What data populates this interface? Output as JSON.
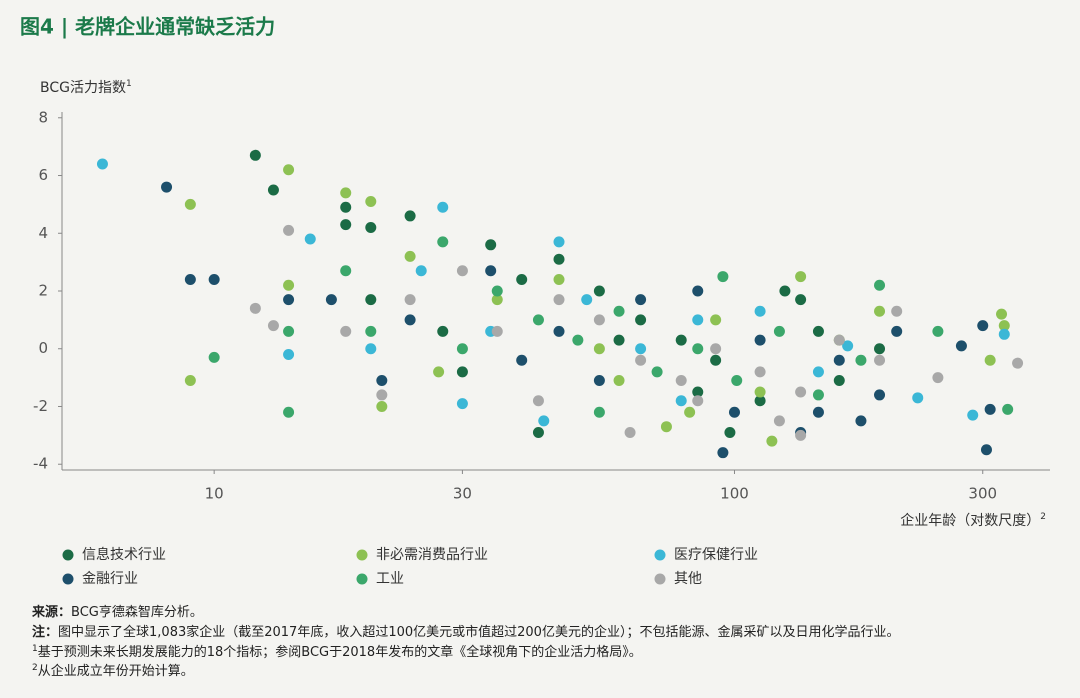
{
  "chart_data": {
    "type": "scatter",
    "title": "图4 | 老牌企业通常缺乏活力",
    "y_label": "BCG活力指数",
    "y_label_sup": "1",
    "x_label": "企业年龄（对数尺度）",
    "x_label_sup": "2",
    "xscale": "log",
    "xlim": [
      5.1,
      404
    ],
    "ylim": [
      -4.2,
      8.2
    ],
    "xticks": [
      10,
      30,
      100,
      300
    ],
    "yticks": [
      -4,
      -2,
      0,
      2,
      4,
      6,
      8
    ],
    "grid": false,
    "series": [
      {
        "name": "信息技术行业",
        "color": "#1b6b45",
        "x": [
          12,
          13,
          17.9,
          17.9,
          23.8,
          20,
          34,
          46,
          42,
          98,
          66,
          55,
          92,
          112,
          134,
          159,
          79,
          27.5,
          39,
          190,
          30,
          20,
          125,
          60,
          85,
          145
        ],
        "values": [
          6.7,
          5.5,
          4.9,
          4.3,
          4.6,
          4.2,
          3.6,
          3.1,
          -2.9,
          -2.9,
          1.0,
          2.0,
          -0.4,
          -1.8,
          1.7,
          -1.1,
          0.3,
          0.6,
          2.4,
          0,
          -0.8,
          1.7,
          2.0,
          0.3,
          -1.5,
          0.6
        ]
      },
      {
        "name": "非必需消费品行业",
        "color": "#8dc153",
        "x": [
          9,
          13.9,
          9,
          17.9,
          20,
          326,
          330,
          310,
          134,
          118,
          74,
          13.9,
          23.8,
          35,
          46,
          60,
          92,
          112,
          159,
          190,
          27,
          21,
          82,
          55
        ],
        "values": [
          5.0,
          6.2,
          -1.1,
          5.4,
          5.1,
          1.2,
          0.8,
          -0.4,
          2.5,
          -3.2,
          -2.7,
          2.2,
          3.2,
          1.7,
          2.4,
          -1.1,
          1.0,
          -1.5,
          0.3,
          1.3,
          -0.8,
          -2.0,
          -2.2,
          0
        ]
      },
      {
        "name": "医疗保健行业",
        "color": "#3bb7d6",
        "x": [
          6.1,
          27.5,
          15.3,
          46,
          13.9,
          43,
          287,
          330,
          225,
          30,
          85,
          66,
          112,
          145,
          52,
          34,
          25,
          165,
          79,
          20
        ],
        "values": [
          6.4,
          4.9,
          3.8,
          3.7,
          -0.2,
          -2.5,
          -2.3,
          0.5,
          -1.7,
          -1.9,
          1.0,
          0,
          1.3,
          -0.8,
          1.7,
          0.6,
          2.7,
          0.1,
          -1.8,
          0
        ]
      },
      {
        "name": "金融行业",
        "color": "#1d4f6b",
        "x": [
          8.1,
          9,
          10,
          95,
          305,
          273,
          300,
          310,
          134,
          145,
          175,
          190,
          112,
          85,
          66,
          46,
          34,
          23.8,
          16.8,
          13.9,
          55,
          100,
          159,
          205,
          39,
          21
        ],
        "values": [
          5.6,
          2.4,
          2.4,
          -3.6,
          -3.5,
          0.1,
          0.8,
          -2.1,
          -2.9,
          -2.2,
          -2.5,
          -1.6,
          0.3,
          2.0,
          1.7,
          0.6,
          2.7,
          1.0,
          1.7,
          1.7,
          -1.1,
          -2.2,
          -0.4,
          0.6,
          -0.4,
          -1.1
        ]
      },
      {
        "name": "工业",
        "color": "#3ba76b",
        "x": [
          13.9,
          10,
          13.9,
          246,
          335,
          95,
          190,
          27.5,
          17.9,
          20,
          35,
          42,
          50,
          60,
          71,
          85,
          101,
          122,
          145,
          175,
          55,
          30
        ],
        "values": [
          -2.2,
          -0.3,
          0.6,
          0.6,
          -2.1,
          2.5,
          2.2,
          3.7,
          2.7,
          0.6,
          2.0,
          1.0,
          0.3,
          1.3,
          -0.8,
          0,
          -1.1,
          0.6,
          -1.6,
          -0.4,
          -2.2,
          0
        ]
      },
      {
        "name": "其他",
        "color": "#a8a8a8",
        "x": [
          13.9,
          12,
          13,
          21,
          63,
          350,
          246,
          134,
          122,
          30,
          35,
          46,
          55,
          66,
          79,
          92,
          112,
          134,
          159,
          190,
          23.8,
          17.9,
          42,
          85,
          205
        ],
        "values": [
          4.1,
          1.4,
          0.8,
          -1.6,
          -2.9,
          -0.5,
          -1.0,
          -3.0,
          -2.5,
          2.7,
          0.6,
          1.7,
          1.0,
          -0.4,
          -1.1,
          0,
          -0.8,
          -1.5,
          0.3,
          -0.4,
          1.7,
          0.6,
          -1.8,
          -1.8,
          1.3
        ]
      }
    ]
  },
  "notes": {
    "source_label": "来源：",
    "source": "BCG亨德森智库分析。",
    "note_label": "注：",
    "note": "图中显示了全球1,083家企业（截至2017年底，收入超过100亿美元或市值超过200亿美元的企业）；不包括能源、金属采矿以及日用化学品行业。",
    "footnotes": [
      {
        "sup": "1",
        "text": "基于预测未来长期发展能力的18个指标；参阅BCG于2018年发布的文章《全球视角下的企业活力格局》。"
      },
      {
        "sup": "2",
        "text": "从企业成立年份开始计算。"
      }
    ]
  }
}
